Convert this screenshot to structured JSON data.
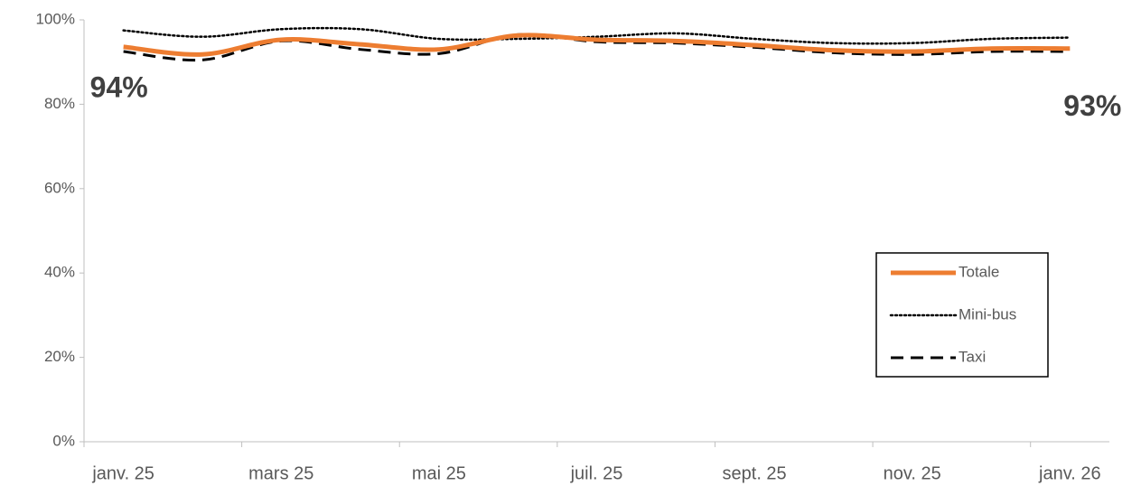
{
  "chart_data": {
    "type": "line",
    "categories": [
      "janv. 25",
      null,
      "mars 25",
      null,
      "mai 25",
      null,
      "juil. 25",
      null,
      "sept. 25",
      null,
      "nov. 25",
      null,
      "janv. 26"
    ],
    "series": [
      {
        "name": "Totale",
        "color": "#ed7d31",
        "style": "solid",
        "values": [
          93.6,
          91.8,
          95.3,
          94.2,
          93.0,
          96.3,
          95.3,
          95.0,
          94.0,
          92.8,
          92.5,
          93.2,
          93.2
        ],
        "value_labels": [
          "94%",
          null,
          null,
          null,
          null,
          null,
          null,
          null,
          null,
          null,
          null,
          null,
          "93%"
        ]
      },
      {
        "name": "Mini-bus",
        "color": "#000000",
        "style": "dotted",
        "values": [
          97.5,
          96.0,
          97.8,
          97.8,
          95.5,
          95.5,
          96.0,
          96.8,
          95.5,
          94.5,
          94.5,
          95.5,
          95.8
        ]
      },
      {
        "name": "Taxi",
        "color": "#000000",
        "style": "dashed",
        "values": [
          92.5,
          90.5,
          95.0,
          93.0,
          92.0,
          96.5,
          94.8,
          94.5,
          93.5,
          92.2,
          91.8,
          92.5,
          92.5
        ]
      }
    ],
    "ylim": [
      0,
      100
    ],
    "yticks": [
      {
        "value": 0,
        "label": "0%"
      },
      {
        "value": 20,
        "label": "20%"
      },
      {
        "value": 40,
        "label": "40%"
      },
      {
        "value": 60,
        "label": "60%"
      },
      {
        "value": 80,
        "label": "80%"
      },
      {
        "value": 100,
        "label": "100%"
      }
    ],
    "grid": false,
    "legend": "lower right",
    "smooth": true
  }
}
